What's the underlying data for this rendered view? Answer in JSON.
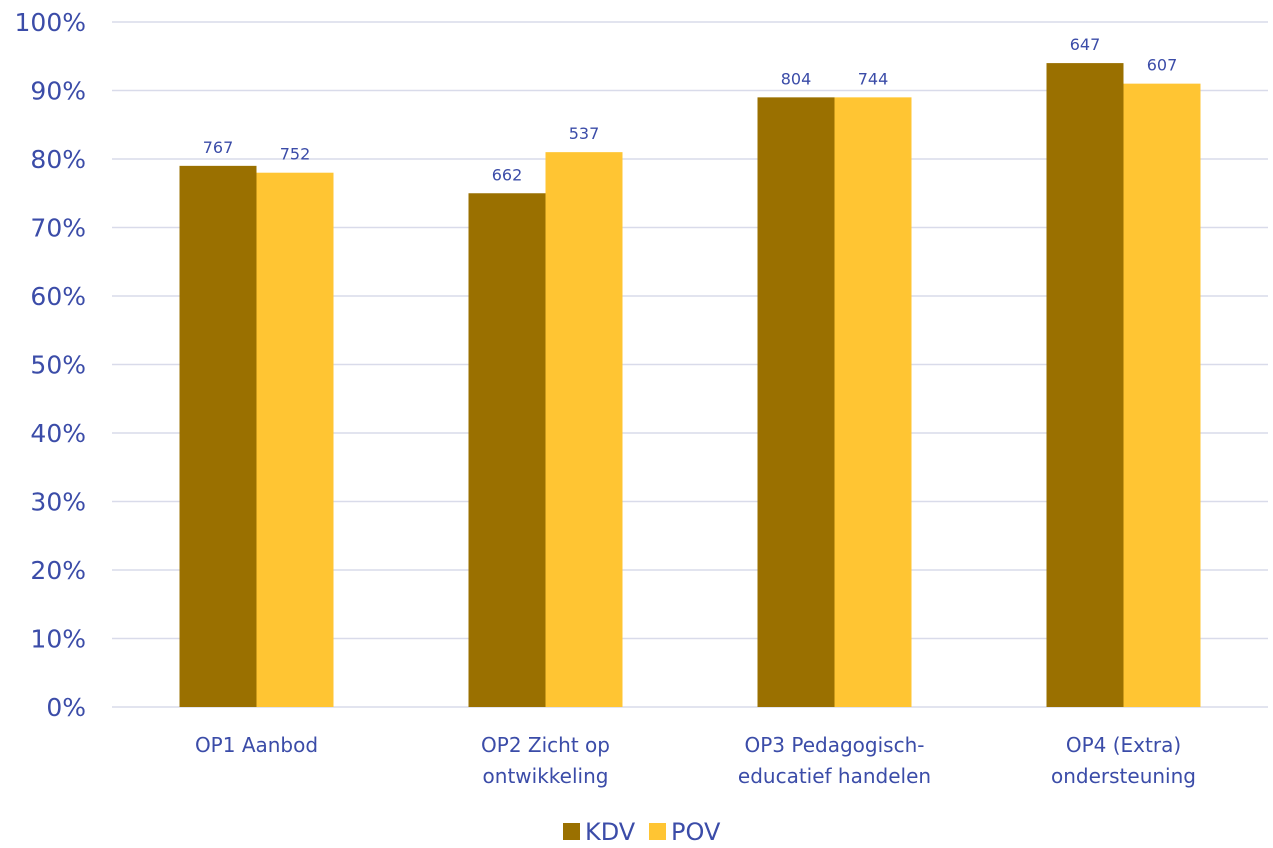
{
  "chart_data": {
    "type": "bar",
    "categories": [
      [
        "OP1 Aanbod"
      ],
      [
        "OP2 Zicht op",
        "ontwikkeling"
      ],
      [
        "OP3 Pedagogisch-",
        "educatief handelen"
      ],
      [
        "OP4 (Extra)",
        "ondersteuning"
      ]
    ],
    "series": [
      {
        "name": "KDV",
        "color": "#9A7000",
        "values": [
          79,
          75,
          89,
          94
        ],
        "labels": [
          "767",
          "662",
          "804",
          "647"
        ]
      },
      {
        "name": "POV",
        "color": "#FFC533",
        "values": [
          78,
          81,
          89,
          91
        ],
        "labels": [
          "752",
          "537",
          "744",
          "607"
        ]
      }
    ],
    "yticks": [
      "0%",
      "10%",
      "20%",
      "30%",
      "40%",
      "50%",
      "60%",
      "70%",
      "80%",
      "90%",
      "100%"
    ],
    "ylim": [
      0,
      100
    ],
    "grid": true,
    "legend_position": "bottom",
    "title": "",
    "xlabel": "",
    "ylabel": ""
  }
}
